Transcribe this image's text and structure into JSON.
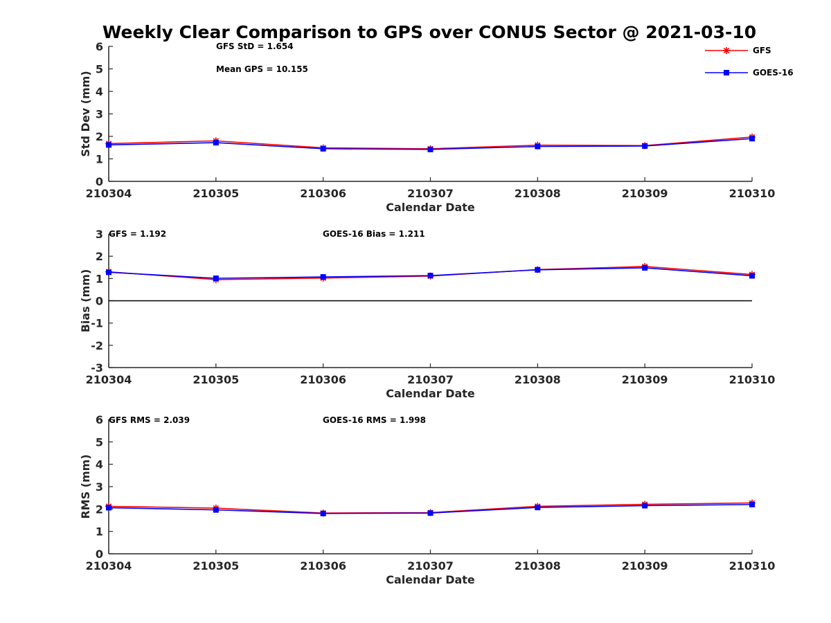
{
  "title": "Weekly Clear Comparison to GPS over CONUS Sector @ 2021-03-10",
  "legend": {
    "placement": "top-right",
    "entries": [
      {
        "name": "GFS",
        "color": "#ff0000",
        "marker": "asterisk"
      },
      {
        "name": "GOES-16",
        "color": "#0000ff",
        "marker": "square"
      }
    ]
  },
  "chart_data": [
    {
      "type": "line",
      "title": "",
      "xlabel": "Calendar Date",
      "ylabel": "Std Dev (mm)",
      "categories": [
        "210304",
        "210305",
        "210306",
        "210307",
        "210308",
        "210309",
        "210310"
      ],
      "ylim": [
        0,
        6
      ],
      "yticks": [
        "0",
        "1",
        "2",
        "3",
        "4",
        "5",
        "6"
      ],
      "grid": false,
      "zero_line": false,
      "annotations": [
        "GFS StD = 1.654",
        "Mean GPS = 10.155"
      ],
      "series": [
        {
          "name": "GFS",
          "color": "#ff0000",
          "marker": "asterisk",
          "values": [
            1.68,
            1.8,
            1.49,
            1.45,
            1.61,
            1.59,
            1.97
          ]
        },
        {
          "name": "GOES-16",
          "color": "#0000ff",
          "marker": "square",
          "values": [
            1.62,
            1.72,
            1.45,
            1.42,
            1.55,
            1.57,
            1.9
          ]
        }
      ]
    },
    {
      "type": "line",
      "title": "",
      "xlabel": "Calendar Date",
      "ylabel": "Bias (mm)",
      "categories": [
        "210304",
        "210305",
        "210306",
        "210307",
        "210308",
        "210309",
        "210310"
      ],
      "ylim": [
        -3,
        3
      ],
      "yticks": [
        "-3",
        "-2",
        "-1",
        "0",
        "1",
        "2",
        "3"
      ],
      "grid": false,
      "zero_line": true,
      "annotations": [
        "GFS = 1.192",
        "GOES-16 Bias  = 1.211"
      ],
      "series": [
        {
          "name": "GFS",
          "color": "#ff0000",
          "marker": "asterisk",
          "values": [
            1.3,
            0.95,
            1.02,
            1.11,
            1.4,
            1.54,
            1.18
          ]
        },
        {
          "name": "GOES-16",
          "color": "#0000ff",
          "marker": "square",
          "values": [
            1.28,
            1.01,
            1.07,
            1.13,
            1.39,
            1.48,
            1.12
          ]
        }
      ]
    },
    {
      "type": "line",
      "title": "",
      "xlabel": "Calendar Date",
      "ylabel": "RMS (mm)",
      "categories": [
        "210304",
        "210305",
        "210306",
        "210307",
        "210308",
        "210309",
        "210310"
      ],
      "ylim": [
        0,
        6
      ],
      "yticks": [
        "0",
        "1",
        "2",
        "3",
        "4",
        "5",
        "6"
      ],
      "grid": false,
      "zero_line": false,
      "annotations": [
        "GFS RMS = 2.039",
        "GOES-16 RMS = 1.998"
      ],
      "series": [
        {
          "name": "GFS",
          "color": "#ff0000",
          "marker": "asterisk",
          "values": [
            2.12,
            2.04,
            1.82,
            1.84,
            2.12,
            2.21,
            2.27
          ]
        },
        {
          "name": "GOES-16",
          "color": "#0000ff",
          "marker": "square",
          "values": [
            2.06,
            1.96,
            1.8,
            1.82,
            2.07,
            2.15,
            2.2
          ]
        }
      ]
    }
  ]
}
